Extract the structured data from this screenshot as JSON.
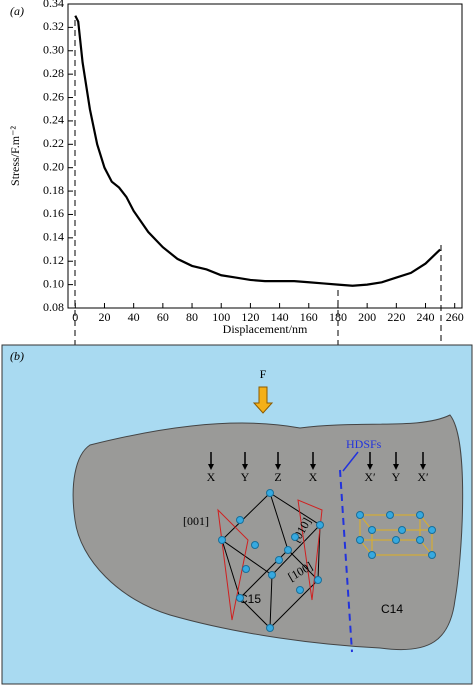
{
  "chart_data": {
    "type": "line",
    "panel_label": "(a)",
    "x_label": "Displacement/nm",
    "y_label": "Stress/F.m⁻²",
    "x": [
      0,
      2,
      5,
      10,
      15,
      20,
      25,
      30,
      35,
      40,
      50,
      60,
      70,
      80,
      90,
      100,
      110,
      120,
      130,
      140,
      150,
      160,
      170,
      180,
      190,
      200,
      210,
      220,
      230,
      240,
      250
    ],
    "series": [
      {
        "color": "#000000",
        "values": [
          0.33,
          0.325,
          0.29,
          0.25,
          0.22,
          0.2,
          0.188,
          0.183,
          0.175,
          0.163,
          0.145,
          0.132,
          0.122,
          0.116,
          0.113,
          0.108,
          0.106,
          0.104,
          0.103,
          0.103,
          0.103,
          0.102,
          0.101,
          0.1,
          0.099,
          0.1,
          0.102,
          0.106,
          0.11,
          0.118,
          0.13
        ]
      }
    ],
    "xlim": [
      -5,
      265
    ],
    "ylim": [
      0.08,
      0.34
    ],
    "xticks": [
      0,
      20,
      40,
      60,
      80,
      100,
      120,
      140,
      160,
      180,
      200,
      220,
      240,
      260
    ],
    "yticks": [
      0.08,
      {
        "value": 0.1,
        "label": "0.10"
      },
      0.12,
      0.14,
      0.16,
      0.18,
      {
        "value": 0.2,
        "label": "0.20"
      },
      0.22,
      0.24,
      0.26,
      0.28,
      {
        "value": 0.3,
        "label": "0.30"
      },
      0.32,
      0.34
    ]
  },
  "diagram": {
    "panel_label": "(b)",
    "force": "F",
    "hdsfs": "HDSFs",
    "stacking": [
      "X",
      "Y",
      "Z",
      "X",
      "X′",
      "Y",
      "X′"
    ],
    "directions": [
      "[001]",
      "[010]",
      "[100]"
    ],
    "phases": [
      "C15",
      "C14"
    ]
  }
}
